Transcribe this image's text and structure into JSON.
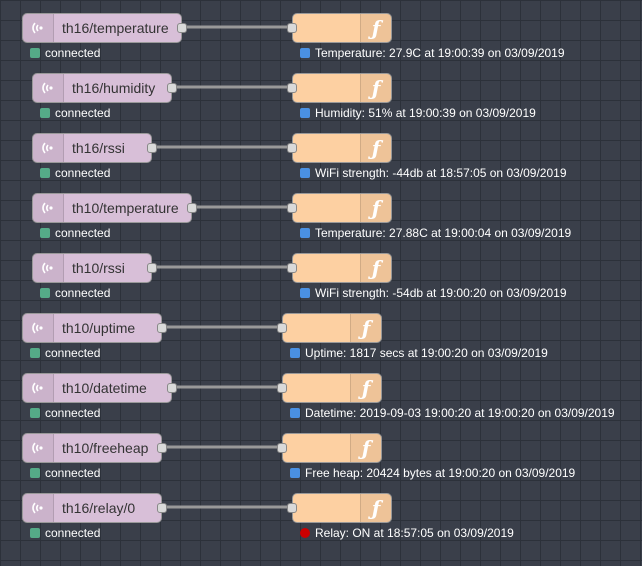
{
  "colors": {
    "connected": "#55aa88",
    "info": "#4a90e2",
    "relay_on": "#cc0000"
  },
  "icons": {
    "mqtt": "radio-waves-icon",
    "function": "function-icon"
  },
  "rows": [
    {
      "mqtt_label": "th16/temperature",
      "mqtt_status": "connected",
      "func_status": "Temperature: 27.9C at 19:00:39 on 03/09/2019",
      "func_status_color": "blue"
    },
    {
      "mqtt_label": "th16/humidity",
      "mqtt_status": "connected",
      "func_status": "Humidity: 51% at 19:00:39 on 03/09/2019",
      "func_status_color": "blue"
    },
    {
      "mqtt_label": "th16/rssi",
      "mqtt_status": "connected",
      "func_status": "WiFi strength: -44db at 18:57:05 on 03/09/2019",
      "func_status_color": "blue"
    },
    {
      "mqtt_label": "th10/temperature",
      "mqtt_status": "connected",
      "func_status": "Temperature: 27.88C at 19:00:04 on 03/09/2019",
      "func_status_color": "blue"
    },
    {
      "mqtt_label": "th10/rssi",
      "mqtt_status": "connected",
      "func_status": "WiFi strength: -54db at 19:00:20 on 03/09/2019",
      "func_status_color": "blue"
    },
    {
      "mqtt_label": "th10/uptime",
      "mqtt_status": "connected",
      "func_status": "Uptime: 1817 secs at 19:00:20 on 03/09/2019",
      "func_status_color": "blue"
    },
    {
      "mqtt_label": "th10/datetime",
      "mqtt_status": "connected",
      "func_status": "Datetime: 2019-09-03 19:00:20 at 19:00:20 on 03/09/2019",
      "func_status_color": "blue"
    },
    {
      "mqtt_label": "th10/freeheap",
      "mqtt_status": "connected",
      "func_status": "Free heap: 20424 bytes at 19:00:20 on 03/09/2019",
      "func_status_color": "blue"
    },
    {
      "mqtt_label": "th16/relay/0",
      "mqtt_status": "connected",
      "func_status": "Relay: ON at 18:57:05 on 03/09/2019",
      "func_status_color": "red"
    }
  ]
}
